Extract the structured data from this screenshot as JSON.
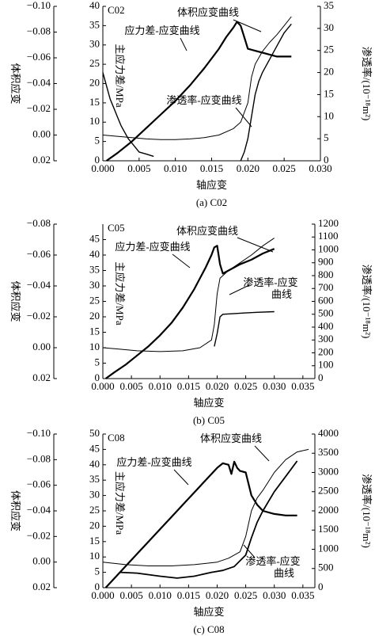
{
  "chart_data": [
    {
      "type": "line",
      "title": "C02",
      "caption": "(a) C02",
      "xlabel": "轴应变",
      "ylabel": "主应力差/MPa",
      "y2label": "渗透率/(10⁻¹⁸m²)",
      "y3label": "体积应变",
      "xlim": [
        0,
        0.03
      ],
      "xticks": [
        {
          "value": 0,
          "label": "0.000"
        },
        {
          "value": 0.005,
          "label": "0.005"
        },
        {
          "value": 0.01,
          "label": "0.010"
        },
        {
          "value": 0.015,
          "label": "0.015"
        },
        {
          "value": 0.02,
          "label": "0.020"
        },
        {
          "value": 0.025,
          "label": "0.025"
        },
        {
          "value": 0.03,
          "label": "0.030"
        }
      ],
      "ylim": [
        0,
        40
      ],
      "yticks": [
        0,
        5,
        10,
        15,
        20,
        25,
        30,
        35,
        40
      ],
      "y2lim": [
        0,
        35
      ],
      "y2ticks": [
        0,
        5,
        10,
        15,
        20,
        25,
        30,
        35
      ],
      "y3lim": [
        0.02,
        -0.1
      ],
      "y3ticks": [
        {
          "value": 0.02,
          "label": "0.02"
        },
        {
          "value": 0,
          "label": "0.00"
        },
        {
          "value": -0.02,
          "label": "−0.02"
        },
        {
          "value": -0.04,
          "label": "−0.04"
        },
        {
          "value": -0.06,
          "label": "−0.06"
        },
        {
          "value": -0.08,
          "label": "−0.08"
        },
        {
          "value": -0.1,
          "label": "−0.10"
        }
      ],
      "annotations": [
        {
          "lines": [
            "体积应变曲线"
          ]
        },
        {
          "lines": [
            "应力差-应变曲线"
          ]
        },
        {
          "lines": [
            "渗透率-应变曲线"
          ]
        }
      ],
      "series": [
        {
          "axis": "y",
          "color": "#000000",
          "linewidth": 2.2,
          "x": [
            0.0005,
            0.002,
            0.004,
            0.006,
            0.008,
            0.01,
            0.012,
            0.014,
            0.016,
            0.017,
            0.018,
            0.0185,
            0.019,
            0.0195,
            0.02,
            0.021,
            0.022,
            0.023,
            0.024,
            0.025,
            0.026
          ],
          "values": [
            0,
            2,
            5,
            8.5,
            12,
            15.5,
            19.5,
            24,
            29,
            32,
            34.5,
            36,
            35,
            32,
            29,
            28.5,
            28,
            27.5,
            27,
            27,
            27
          ]
        },
        {
          "axis": "y3",
          "color": "#000000",
          "linewidth": 1,
          "x": [
            0,
            0.002,
            0.004,
            0.006,
            0.008,
            0.01,
            0.012,
            0.014,
            0.016,
            0.018,
            0.019,
            0.02,
            0.0205,
            0.021,
            0.022,
            0.023,
            0.024,
            0.025,
            0.026
          ],
          "values": [
            0,
            0.001,
            0.002,
            0.003,
            0.0035,
            0.0035,
            0.003,
            0.002,
            0,
            -0.005,
            -0.01,
            -0.025,
            -0.045,
            -0.055,
            -0.065,
            -0.072,
            -0.078,
            -0.085,
            -0.092
          ]
        },
        {
          "axis": "y2",
          "color": "#000000",
          "linewidth": 1.4,
          "x": [
            0,
            0.0005,
            0.001,
            0.0015,
            0.002,
            0.0025,
            0.003,
            0.0035,
            0.004,
            0.0045,
            0.005,
            0.006,
            0.007,
            0.013,
            0.019,
            0.0195,
            0.02,
            0.0205,
            0.021,
            0.0215,
            0.022,
            0.023,
            0.024,
            0.025,
            0.026
          ],
          "values": [
            20,
            17,
            14,
            12,
            10,
            8,
            6.5,
            5,
            4,
            3,
            2,
            1.5,
            1,
            null,
            0,
            2,
            5,
            10,
            15,
            18,
            20,
            23,
            26,
            29,
            31
          ]
        }
      ]
    },
    {
      "type": "line",
      "title": "C05",
      "caption": "(b) C05",
      "xlabel": "轴应变",
      "ylabel": "主应力差/MPa",
      "y2label": "渗透率/(10⁻¹⁸m²)",
      "y3label": "体积应变",
      "xlim": [
        0,
        0.0371
      ],
      "xticks": [
        {
          "value": 0,
          "label": "0.000"
        },
        {
          "value": 0.005,
          "label": "0.005"
        },
        {
          "value": 0.01,
          "label": "0.010"
        },
        {
          "value": 0.015,
          "label": "0.015"
        },
        {
          "value": 0.02,
          "label": "0.020"
        },
        {
          "value": 0.025,
          "label": "0.025"
        },
        {
          "value": 0.03,
          "label": "0.030"
        },
        {
          "value": 0.035,
          "label": "0.035"
        }
      ],
      "ylim": [
        0,
        50
      ],
      "yticks": [
        0,
        5,
        10,
        15,
        20,
        25,
        30,
        35,
        40,
        45
      ],
      "y2lim": [
        0,
        1200
      ],
      "y2ticks": [
        0,
        100,
        200,
        300,
        400,
        500,
        600,
        700,
        800,
        900,
        1000,
        1100,
        1200
      ],
      "y3lim": [
        0.02,
        -0.08
      ],
      "y3ticks": [
        {
          "value": 0.02,
          "label": "0.02"
        },
        {
          "value": 0,
          "label": "0.00"
        },
        {
          "value": -0.02,
          "label": "−0.02"
        },
        {
          "value": -0.04,
          "label": "−0.04"
        },
        {
          "value": -0.06,
          "label": "−0.06"
        },
        {
          "value": -0.08,
          "label": "−0.08"
        }
      ],
      "annotations": [
        {
          "lines": [
            "体积应变曲线"
          ]
        },
        {
          "lines": [
            "应力差-应变曲线"
          ]
        },
        {
          "lines": [
            "渗透率-应变",
            "曲线"
          ]
        }
      ],
      "series": [
        {
          "axis": "y",
          "color": "#000000",
          "linewidth": 2.2,
          "x": [
            0.0005,
            0.002,
            0.004,
            0.006,
            0.008,
            0.01,
            0.012,
            0.014,
            0.016,
            0.018,
            0.019,
            0.0195,
            0.02,
            0.0205,
            0.021,
            0.022,
            0.024,
            0.026,
            0.028,
            0.03
          ],
          "values": [
            0,
            2,
            4.5,
            7.5,
            10.5,
            14,
            18,
            23,
            29,
            36,
            40,
            42.5,
            43,
            37,
            34,
            35,
            37,
            38.5,
            40.5,
            42
          ]
        },
        {
          "axis": "y3",
          "color": "#000000",
          "linewidth": 1,
          "x": [
            0,
            0.003,
            0.006,
            0.01,
            0.014,
            0.017,
            0.019,
            0.0195,
            0.02,
            0.0205,
            0.022,
            0.024,
            0.026,
            0.028,
            0.03
          ],
          "values": [
            0,
            0.001,
            0.002,
            0.0025,
            0.002,
            0,
            -0.005,
            -0.015,
            -0.035,
            -0.045,
            -0.05,
            -0.055,
            -0.06,
            -0.066,
            -0.071
          ]
        },
        {
          "axis": "y2",
          "color": "#000000",
          "linewidth": 1.4,
          "x": [
            0.0195,
            0.02,
            0.0205,
            0.021,
            0.023,
            0.025,
            0.027,
            0.03
          ],
          "values": [
            250,
            350,
            480,
            500,
            505,
            510,
            515,
            520
          ]
        }
      ]
    },
    {
      "type": "line",
      "title": "C08",
      "caption": "(c) C08",
      "xlabel": "轴应变",
      "ylabel": "主应力差/MPa",
      "y2label": "渗透率/(10⁻¹⁸m²)",
      "y3label": "体积应变",
      "xlim": [
        0,
        0.0371
      ],
      "xticks": [
        {
          "value": 0,
          "label": "0.000"
        },
        {
          "value": 0.005,
          "label": "0.005"
        },
        {
          "value": 0.01,
          "label": "0.010"
        },
        {
          "value": 0.015,
          "label": "0.015"
        },
        {
          "value": 0.02,
          "label": "0.020"
        },
        {
          "value": 0.025,
          "label": "0.025"
        },
        {
          "value": 0.03,
          "label": "0.030"
        },
        {
          "value": 0.035,
          "label": "0.035"
        }
      ],
      "ylim": [
        0,
        50
      ],
      "yticks": [
        0,
        5,
        10,
        15,
        20,
        25,
        30,
        35,
        40,
        45,
        50
      ],
      "y2lim": [
        0,
        4000
      ],
      "y2ticks": [
        0,
        500,
        1000,
        1500,
        2000,
        2500,
        3000,
        3500,
        4000
      ],
      "y3lim": [
        0.02,
        -0.1
      ],
      "y3ticks": [
        {
          "value": 0.02,
          "label": "0.02"
        },
        {
          "value": 0,
          "label": "0.00"
        },
        {
          "value": -0.02,
          "label": "−0.02"
        },
        {
          "value": -0.04,
          "label": "−0.04"
        },
        {
          "value": -0.06,
          "label": "−0.06"
        },
        {
          "value": -0.08,
          "label": "−0.08"
        },
        {
          "value": -0.1,
          "label": "−0.10"
        }
      ],
      "annotations": [
        {
          "lines": [
            "体积应变曲线"
          ]
        },
        {
          "lines": [
            "应力差-应变曲线"
          ]
        },
        {
          "lines": [
            "渗透率-应变",
            "曲线"
          ]
        }
      ],
      "series": [
        {
          "axis": "y",
          "color": "#000000",
          "linewidth": 2.2,
          "x": [
            0.0005,
            0.002,
            0.004,
            0.006,
            0.008,
            0.01,
            0.012,
            0.014,
            0.016,
            0.018,
            0.02,
            0.021,
            0.022,
            0.0225,
            0.023,
            0.0235,
            0.024,
            0.025,
            0.026,
            0.027,
            0.028,
            0.03,
            0.032,
            0.034
          ],
          "values": [
            0,
            3,
            7,
            11,
            15,
            19,
            23,
            27,
            31,
            35,
            39,
            40.5,
            40,
            37,
            41,
            39,
            38,
            37.5,
            30,
            27,
            25,
            24,
            23.5,
            23.5
          ]
        },
        {
          "axis": "y3",
          "color": "#000000",
          "linewidth": 1,
          "x": [
            0,
            0.004,
            0.008,
            0.012,
            0.016,
            0.02,
            0.022,
            0.024,
            0.025,
            0.026,
            0.027,
            0.028,
            0.03,
            0.032,
            0.034,
            0.036
          ],
          "values": [
            0,
            0.002,
            0.003,
            0.003,
            0.002,
            0,
            -0.003,
            -0.008,
            -0.02,
            -0.04,
            -0.05,
            -0.056,
            -0.07,
            -0.08,
            -0.086,
            -0.088
          ]
        },
        {
          "axis": "y2",
          "color": "#000000",
          "linewidth": 1.8,
          "x": [
            0.003,
            0.006,
            0.01,
            0.013,
            0.016,
            0.019,
            0.021,
            0.023,
            0.025,
            0.026,
            0.027,
            0.028,
            0.03,
            0.032,
            0.034
          ],
          "values": [
            400,
            380,
            300,
            250,
            300,
            400,
            450,
            550,
            850,
            1300,
            1700,
            2000,
            2500,
            2900,
            3300
          ]
        }
      ]
    }
  ]
}
